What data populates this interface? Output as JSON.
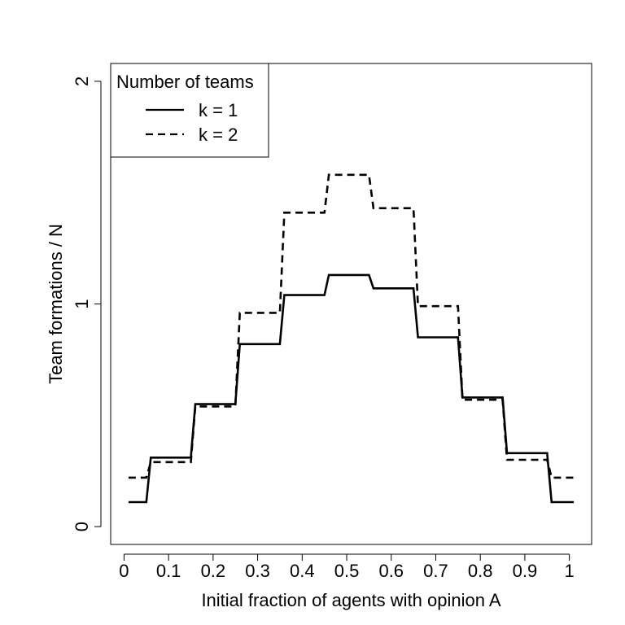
{
  "chart_data": {
    "type": "line",
    "title": "",
    "xlabel": "Initial fraction of agents with opinion A",
    "ylabel": "Team formations / N",
    "xlim": [
      -0.03,
      1.05
    ],
    "ylim": [
      -0.08,
      2.08
    ],
    "xticks": [
      0,
      0.1,
      0.2,
      0.3,
      0.4,
      0.5,
      0.6,
      0.7,
      0.8,
      0.9,
      1
    ],
    "xtick_labels": [
      "0",
      "0.1",
      "0.2",
      "0.3",
      "0.4",
      "0.5",
      "0.6",
      "0.7",
      "0.8",
      "0.9",
      "1"
    ],
    "yticks": [
      0,
      1,
      2
    ],
    "ytick_labels": [
      "0",
      "1",
      "2"
    ],
    "grid": false,
    "legend": {
      "title": "Number of teams",
      "placement": "top-left",
      "entries": [
        "k = 1",
        "k = 2"
      ]
    },
    "series": [
      {
        "name": "k = 1",
        "style": "solid",
        "points": [
          [
            0.01,
            0.11
          ],
          [
            0.05,
            0.11
          ],
          [
            0.06,
            0.31
          ],
          [
            0.15,
            0.31
          ],
          [
            0.16,
            0.55
          ],
          [
            0.25,
            0.55
          ],
          [
            0.26,
            0.82
          ],
          [
            0.35,
            0.82
          ],
          [
            0.36,
            1.04
          ],
          [
            0.45,
            1.04
          ],
          [
            0.46,
            1.13
          ],
          [
            0.55,
            1.13
          ],
          [
            0.56,
            1.07
          ],
          [
            0.65,
            1.07
          ],
          [
            0.66,
            0.85
          ],
          [
            0.75,
            0.85
          ],
          [
            0.76,
            0.58
          ],
          [
            0.85,
            0.58
          ],
          [
            0.86,
            0.33
          ],
          [
            0.95,
            0.33
          ],
          [
            0.96,
            0.11
          ],
          [
            1.01,
            0.11
          ]
        ]
      },
      {
        "name": "k = 2",
        "style": "dashed",
        "points": [
          [
            0.01,
            0.22
          ],
          [
            0.05,
            0.22
          ],
          [
            0.06,
            0.29
          ],
          [
            0.15,
            0.29
          ],
          [
            0.16,
            0.54
          ],
          [
            0.25,
            0.54
          ],
          [
            0.26,
            0.96
          ],
          [
            0.35,
            0.96
          ],
          [
            0.36,
            1.41
          ],
          [
            0.45,
            1.41
          ],
          [
            0.46,
            1.58
          ],
          [
            0.55,
            1.58
          ],
          [
            0.56,
            1.43
          ],
          [
            0.65,
            1.43
          ],
          [
            0.66,
            0.99
          ],
          [
            0.75,
            0.99
          ],
          [
            0.76,
            0.57
          ],
          [
            0.85,
            0.57
          ],
          [
            0.86,
            0.3
          ],
          [
            0.95,
            0.3
          ],
          [
            0.96,
            0.22
          ],
          [
            1.01,
            0.22
          ]
        ]
      }
    ]
  }
}
